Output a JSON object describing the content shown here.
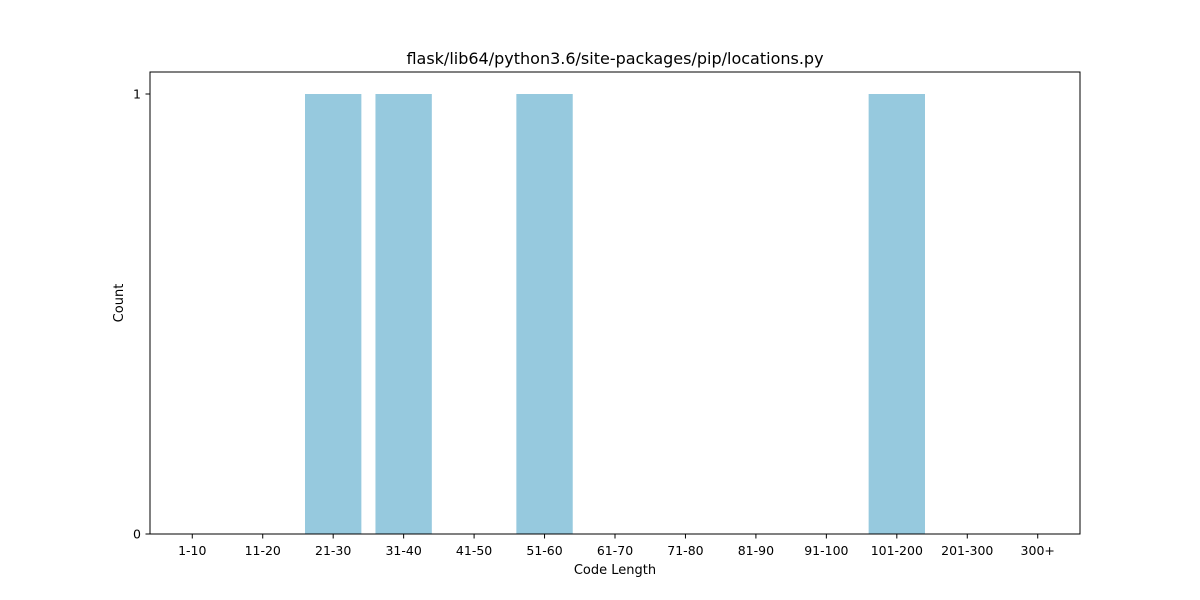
{
  "chart_data": {
    "type": "bar",
    "title": "flask/lib64/python3.6/site-packages/pip/locations.py",
    "xlabel": "Code Length",
    "ylabel": "Count",
    "categories": [
      "1-10",
      "11-20",
      "21-30",
      "31-40",
      "41-50",
      "51-60",
      "61-70",
      "71-80",
      "81-90",
      "91-100",
      "101-200",
      "201-300",
      "300+"
    ],
    "values": [
      0,
      0,
      1,
      1,
      0,
      1,
      0,
      0,
      0,
      0,
      1,
      0,
      0
    ],
    "yticks": [
      0,
      1
    ],
    "ylim": [
      0,
      1.05
    ],
    "grid": false,
    "legend": "none",
    "bar_color": "#96c9de"
  }
}
